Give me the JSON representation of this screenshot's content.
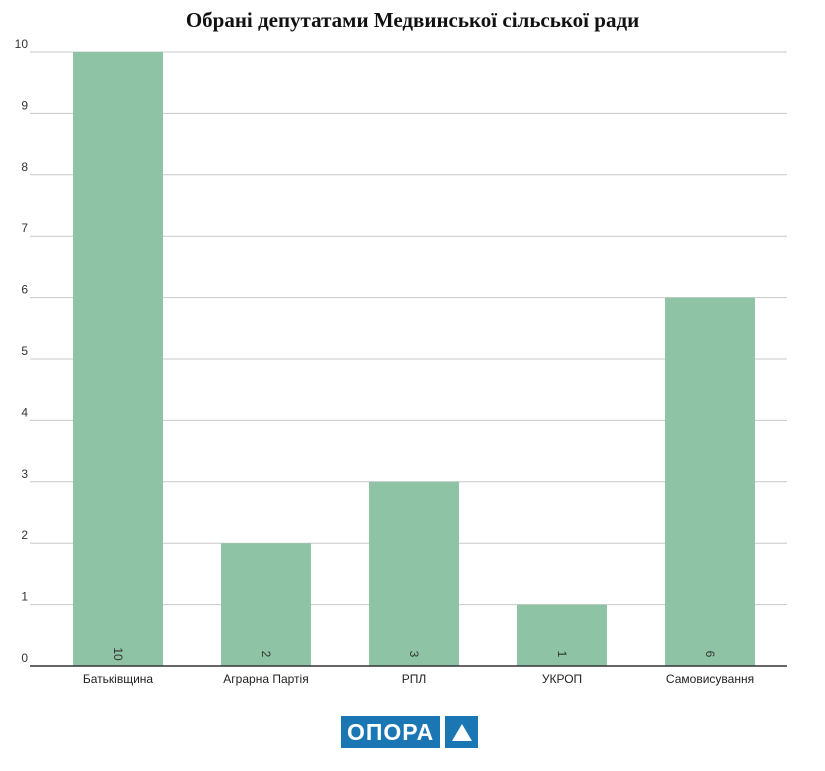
{
  "chart_data": {
    "type": "bar",
    "title": "Обрані депутатами Медвинської сільської ради",
    "categories": [
      "Батьківщина",
      "Аграрна Партія",
      "РПЛ",
      "УКРОП",
      "Самовисування"
    ],
    "values": [
      10,
      2,
      3,
      1,
      6
    ],
    "data_labels": [
      "10",
      "2",
      "3",
      "1",
      "6"
    ],
    "ylim": [
      0,
      10
    ],
    "yticks": [
      0,
      1,
      2,
      3,
      4,
      5,
      6,
      7,
      8,
      9,
      10
    ],
    "xlabel": "",
    "ylabel": "",
    "grid": true,
    "bar_color": "#8fc3a6"
  },
  "logo": {
    "text": "ОПОРА"
  }
}
